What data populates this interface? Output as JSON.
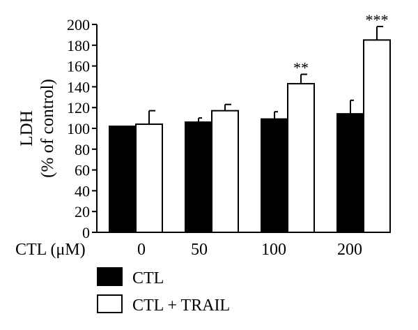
{
  "chart_data": {
    "type": "bar",
    "title": "",
    "ylabel_line1": "LDH",
    "ylabel_line2": "(% of control)",
    "xlabel": "CTL (μM)",
    "categories": [
      "0",
      "50",
      "100",
      "200"
    ],
    "ylim": [
      0,
      200
    ],
    "yticks": [
      0,
      20,
      40,
      60,
      80,
      100,
      120,
      140,
      160,
      180,
      200
    ],
    "grid": false,
    "legend_position": "bottom",
    "series": [
      {
        "name": "CTL",
        "color": "#000000",
        "values": [
          102,
          106,
          109,
          114
        ],
        "errors": [
          0,
          4,
          7,
          13
        ],
        "significance": [
          "",
          "",
          "",
          ""
        ]
      },
      {
        "name": "CTL + TRAIL",
        "color": "#ffffff",
        "values": [
          104,
          117,
          143,
          185
        ],
        "errors": [
          13,
          6,
          9,
          13
        ],
        "significance": [
          "",
          "",
          "**",
          "***"
        ]
      }
    ]
  }
}
